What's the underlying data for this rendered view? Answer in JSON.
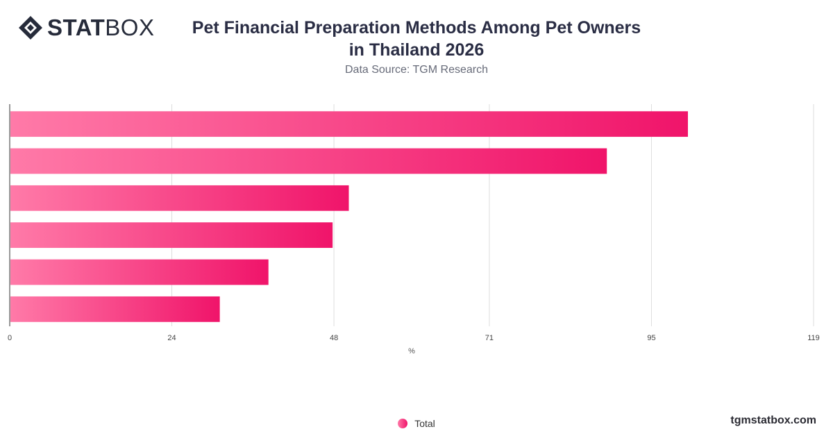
{
  "brand": {
    "logo_bold": "STAT",
    "logo_light": "BOX",
    "site": "tgmstatbox.com"
  },
  "header": {
    "title_line1": "Pet Financial Preparation Methods Among Pet Owners",
    "title_line2": "in Thailand 2026",
    "source": "Data Source: TGM Research"
  },
  "colors": {
    "bar_start": "#ff7aa8",
    "bar_end": "#f0146a",
    "grid": "#dddddd",
    "axis": "#555555"
  },
  "chart_data": {
    "type": "bar",
    "orientation": "horizontal",
    "categories": [
      "",
      "",
      "",
      "",
      "",
      ""
    ],
    "series": [
      {
        "name": "Total",
        "values": [
          100.4,
          88.4,
          50.2,
          47.8,
          38.3,
          31.1
        ]
      }
    ],
    "x_ticks": [
      "0",
      "24",
      "48",
      "71",
      "95",
      "119"
    ],
    "xlabel": "%",
    "xlim": [
      0,
      119
    ],
    "grid": true,
    "legend_position": "bottom-center"
  }
}
